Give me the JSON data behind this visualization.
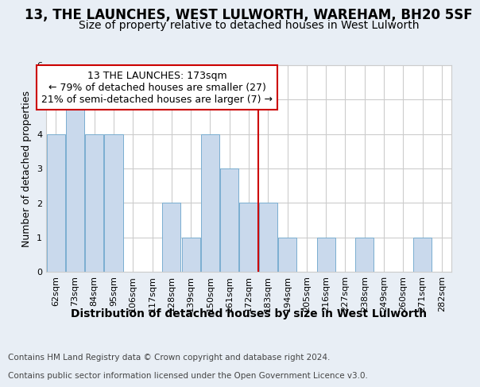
{
  "title": "13, THE LAUNCHES, WEST LULWORTH, WAREHAM, BH20 5SF",
  "subtitle": "Size of property relative to detached houses in West Lulworth",
  "xlabel": "Distribution of detached houses by size in West Lulworth",
  "ylabel": "Number of detached properties",
  "footer1": "Contains HM Land Registry data © Crown copyright and database right 2024.",
  "footer2": "Contains public sector information licensed under the Open Government Licence v3.0.",
  "categories": [
    "62sqm",
    "73sqm",
    "84sqm",
    "95sqm",
    "106sqm",
    "117sqm",
    "128sqm",
    "139sqm",
    "150sqm",
    "161sqm",
    "172sqm",
    "183sqm",
    "194sqm",
    "205sqm",
    "216sqm",
    "227sqm",
    "238sqm",
    "249sqm",
    "260sqm",
    "271sqm",
    "282sqm"
  ],
  "values": [
    4,
    5,
    4,
    4,
    0,
    0,
    2,
    1,
    4,
    3,
    2,
    2,
    1,
    0,
    1,
    0,
    1,
    0,
    0,
    1,
    0
  ],
  "bar_color": "#c9d9ec",
  "bar_edge_color": "#7aaed0",
  "grid_color": "#cccccc",
  "red_line_x": 10.5,
  "annotation_line1": "13 THE LAUNCHES: 173sqm",
  "annotation_line2": "← 79% of detached houses are smaller (27)",
  "annotation_line3": "21% of semi-detached houses are larger (7) →",
  "annotation_box_color": "#ffffff",
  "annotation_box_edge": "#cc0000",
  "ylim": [
    0,
    6
  ],
  "yticks": [
    0,
    1,
    2,
    3,
    4,
    5,
    6
  ],
  "bg_color": "#e8eef5",
  "plot_bg_color": "#ffffff",
  "title_fontsize": 12,
  "subtitle_fontsize": 10,
  "xlabel_fontsize": 10,
  "ylabel_fontsize": 9,
  "tick_fontsize": 8,
  "footer_fontsize": 7.5,
  "ann_fontsize": 9
}
